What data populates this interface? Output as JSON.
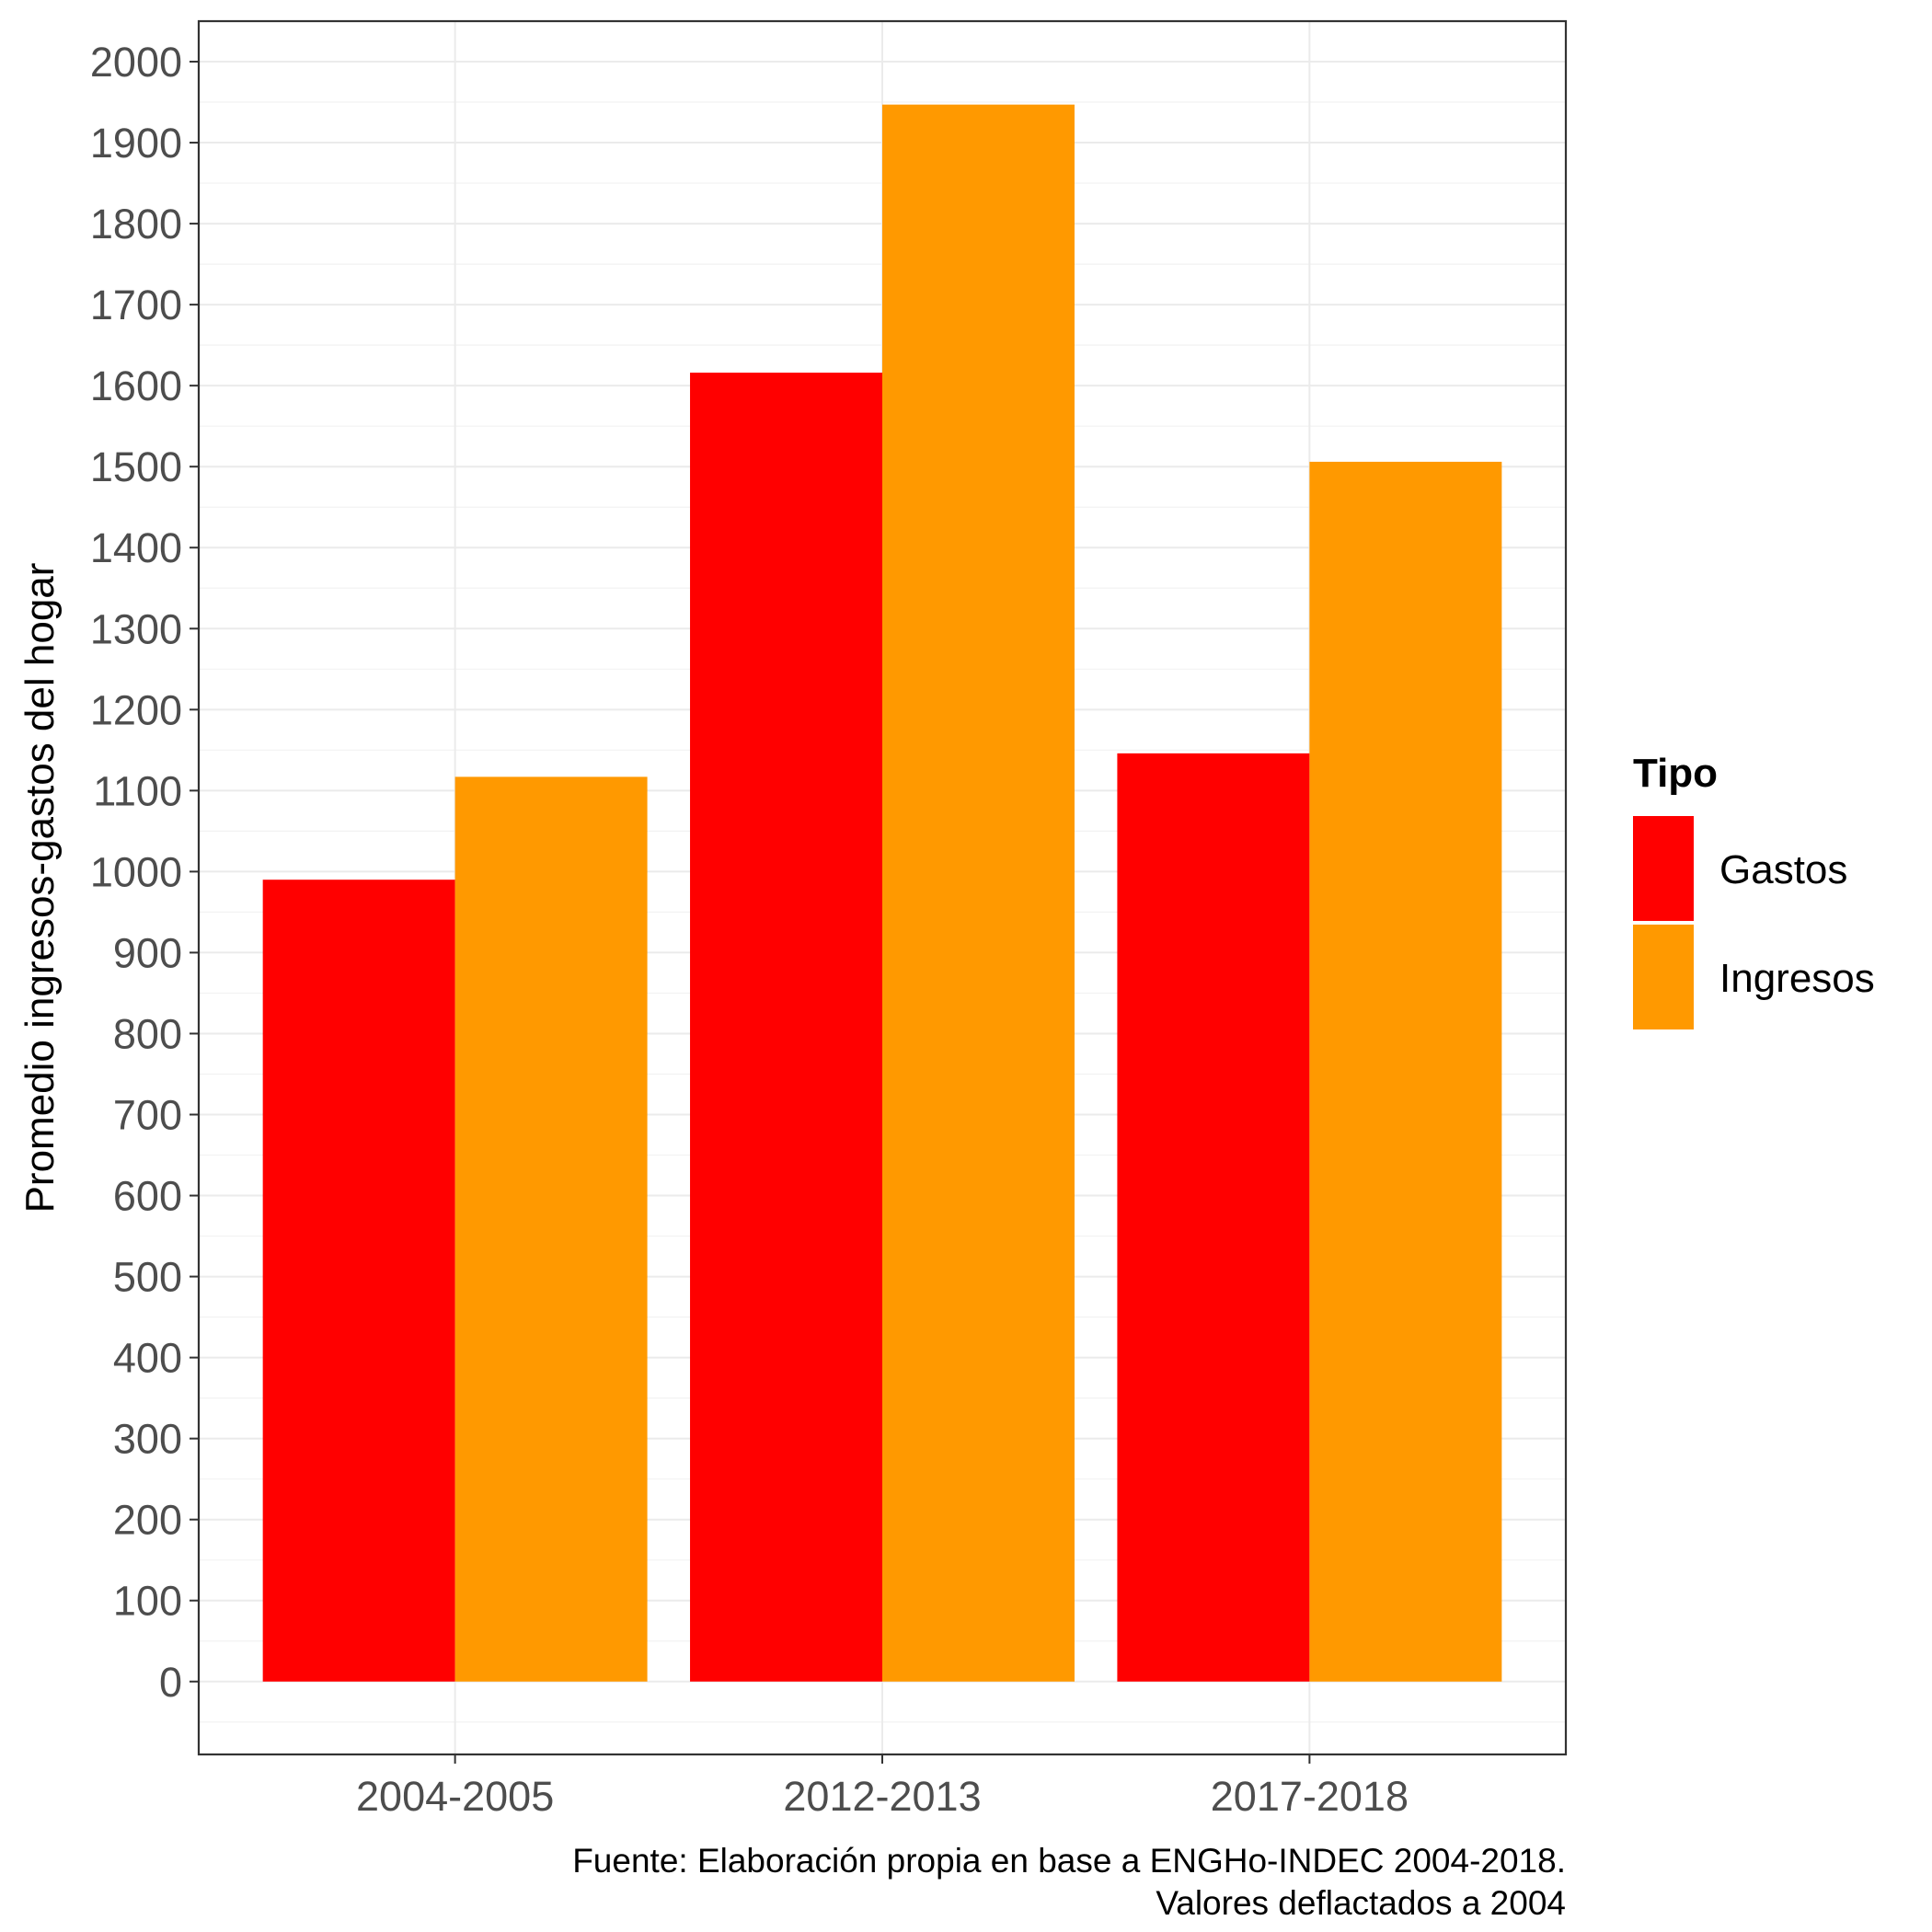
{
  "chart_data": {
    "type": "bar",
    "categories": [
      "2004-2005",
      "2012-2013",
      "2017-2018"
    ],
    "series": [
      {
        "name": "Gastos",
        "values": [
          990,
          1616,
          1146
        ],
        "color": "#ff0000"
      },
      {
        "name": "Ingresos",
        "values": [
          1117,
          1947,
          1506
        ],
        "color": "#ff9900"
      }
    ],
    "title": "",
    "xlabel": "",
    "ylabel": "Promedio ingresos-gastos del hogar",
    "ylim": [
      -90,
      2050
    ],
    "yticks": [
      "0",
      "100",
      "200",
      "300",
      "400",
      "500",
      "600",
      "700",
      "800",
      "900",
      "1000",
      "1100",
      "1200",
      "1300",
      "1400",
      "1500",
      "1600",
      "1700",
      "1800",
      "1900",
      "2000"
    ],
    "grid": true,
    "legend": {
      "title": "Tipo",
      "placement": "right"
    },
    "caption": [
      "Fuente: Elaboración propia en base a ENGHo-INDEC 2004-2018.",
      "Valores deflactados a 2004"
    ]
  }
}
